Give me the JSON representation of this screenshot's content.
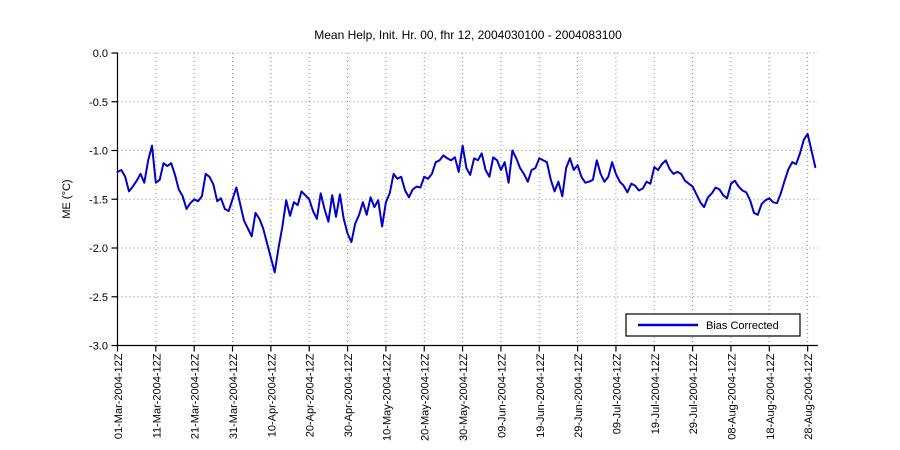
{
  "figure": {
    "title": "Mean Help, Init. Hr. 00, fhr 12, 2004030100 - 2004083100",
    "ylabel": "ME (°C)"
  },
  "legend": {
    "label": "Bias Corrected",
    "position": "lower right"
  },
  "colors": {
    "line": "#0000CC",
    "grid": "#888888",
    "axis": "#000000",
    "background": "#FFFFFF",
    "legend_background": "#FFFFFF"
  },
  "chart_data": {
    "type": "line",
    "title": "Mean Help, Init. Hr. 00, fhr 12, 2004030100 - 2004083100",
    "xlabel": "",
    "ylabel": "ME (°C)",
    "ylim": [
      -3.0,
      0.0
    ],
    "y_ticks": [
      0.0,
      -0.5,
      -1.0,
      -1.5,
      -2.0,
      -2.5,
      -3.0
    ],
    "y_tick_labels": [
      "0.0",
      "-0.5",
      "-1.0",
      "-1.5",
      "-2.0",
      "-2.5",
      "-3.0"
    ],
    "x_tick_labels": [
      "01-Mar-2004-12Z",
      "11-Mar-2004-12Z",
      "21-Mar-2004-12Z",
      "31-Mar-2004-12Z",
      "10-Apr-2004-12Z",
      "20-Apr-2004-12Z",
      "30-Apr-2004-12Z",
      "10-May-2004-12Z",
      "20-May-2004-12Z",
      "30-May-2004-12Z",
      "09-Jun-2004-12Z",
      "19-Jun-2004-12Z",
      "29-Jun-2004-12Z",
      "09-Jul-2004-12Z",
      "19-Jul-2004-12Z",
      "29-Jul-2004-12Z",
      "08-Aug-2004-12Z",
      "18-Aug-2004-12Z",
      "28-Aug-2004-12Z"
    ],
    "x_tick_days": [
      0,
      10,
      20,
      30,
      40,
      50,
      60,
      70,
      80,
      90,
      100,
      110,
      120,
      130,
      140,
      150,
      160,
      170,
      180
    ],
    "x_range_days": [
      0,
      182.7
    ],
    "grid": "dotted",
    "legend_position": "lower right",
    "series": [
      {
        "name": "Bias Corrected",
        "color": "#0000CC",
        "start_date": "01-Mar-2004-12Z",
        "step_days": 1,
        "values": [
          -1.22,
          -1.2,
          -1.27,
          -1.42,
          -1.37,
          -1.31,
          -1.24,
          -1.33,
          -1.1,
          -0.95,
          -1.33,
          -1.3,
          -1.13,
          -1.16,
          -1.13,
          -1.25,
          -1.4,
          -1.47,
          -1.6,
          -1.54,
          -1.5,
          -1.52,
          -1.47,
          -1.24,
          -1.27,
          -1.35,
          -1.52,
          -1.49,
          -1.6,
          -1.62,
          -1.5,
          -1.38,
          -1.55,
          -1.72,
          -1.8,
          -1.88,
          -1.64,
          -1.7,
          -1.8,
          -1.95,
          -2.1,
          -2.25,
          -2.0,
          -1.78,
          -1.51,
          -1.67,
          -1.53,
          -1.56,
          -1.42,
          -1.46,
          -1.5,
          -1.62,
          -1.7,
          -1.44,
          -1.6,
          -1.73,
          -1.46,
          -1.68,
          -1.45,
          -1.7,
          -1.85,
          -1.94,
          -1.75,
          -1.66,
          -1.53,
          -1.66,
          -1.48,
          -1.58,
          -1.51,
          -1.78,
          -1.53,
          -1.44,
          -1.24,
          -1.29,
          -1.27,
          -1.41,
          -1.48,
          -1.4,
          -1.37,
          -1.38,
          -1.27,
          -1.29,
          -1.24,
          -1.12,
          -1.1,
          -1.05,
          -1.08,
          -1.1,
          -1.07,
          -1.22,
          -0.95,
          -1.18,
          -1.25,
          -1.08,
          -1.1,
          -1.03,
          -1.2,
          -1.27,
          -1.07,
          -1.1,
          -1.2,
          -1.12,
          -1.33,
          -1.0,
          -1.08,
          -1.18,
          -1.24,
          -1.32,
          -1.2,
          -1.18,
          -1.08,
          -1.1,
          -1.12,
          -1.3,
          -1.42,
          -1.32,
          -1.47,
          -1.18,
          -1.08,
          -1.2,
          -1.15,
          -1.27,
          -1.33,
          -1.32,
          -1.3,
          -1.1,
          -1.24,
          -1.32,
          -1.27,
          -1.12,
          -1.24,
          -1.32,
          -1.36,
          -1.43,
          -1.34,
          -1.36,
          -1.41,
          -1.39,
          -1.32,
          -1.34,
          -1.17,
          -1.2,
          -1.14,
          -1.1,
          -1.19,
          -1.24,
          -1.22,
          -1.24,
          -1.31,
          -1.34,
          -1.37,
          -1.45,
          -1.53,
          -1.58,
          -1.48,
          -1.44,
          -1.38,
          -1.4,
          -1.46,
          -1.49,
          -1.34,
          -1.31,
          -1.37,
          -1.41,
          -1.43,
          -1.51,
          -1.64,
          -1.66,
          -1.55,
          -1.51,
          -1.49,
          -1.53,
          -1.54,
          -1.44,
          -1.31,
          -1.19,
          -1.12,
          -1.14,
          -1.03,
          -0.89,
          -0.83,
          -1.0,
          -1.17
        ]
      }
    ]
  }
}
